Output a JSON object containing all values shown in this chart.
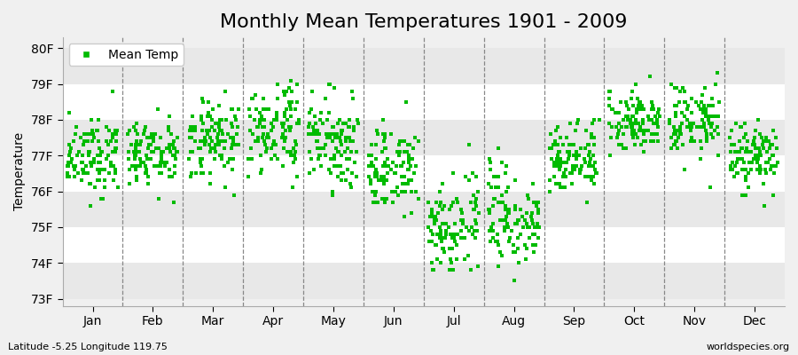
{
  "title": "Monthly Mean Temperatures 1901 - 2009",
  "ylabel": "Temperature",
  "xlabel_labels": [
    "Jan",
    "Feb",
    "Mar",
    "Apr",
    "May",
    "Jun",
    "Jul",
    "Aug",
    "Sep",
    "Oct",
    "Nov",
    "Dec"
  ],
  "ytick_labels": [
    "73F",
    "74F",
    "75F",
    "76F",
    "77F",
    "78F",
    "79F",
    "80F"
  ],
  "ytick_values": [
    73,
    74,
    75,
    76,
    77,
    78,
    79,
    80
  ],
  "ylim": [
    72.8,
    80.3
  ],
  "legend_label": "Mean Temp",
  "dot_color": "#00bb00",
  "dot_size": 5,
  "background_color": "#f0f0f0",
  "band_colors": [
    "#e8e8e8",
    "#ffffff"
  ],
  "subtitle_left": "Latitude -5.25 Longitude 119.75",
  "subtitle_right": "worldspecies.org",
  "title_fontsize": 16,
  "axis_label_fontsize": 10,
  "tick_fontsize": 10,
  "num_years": 109,
  "month_means": [
    77.0,
    77.0,
    77.4,
    77.7,
    77.4,
    76.6,
    75.0,
    75.3,
    77.0,
    78.0,
    78.0,
    77.0
  ],
  "month_stds": [
    0.55,
    0.5,
    0.55,
    0.65,
    0.6,
    0.6,
    0.65,
    0.7,
    0.5,
    0.45,
    0.55,
    0.5
  ],
  "seed": 12
}
